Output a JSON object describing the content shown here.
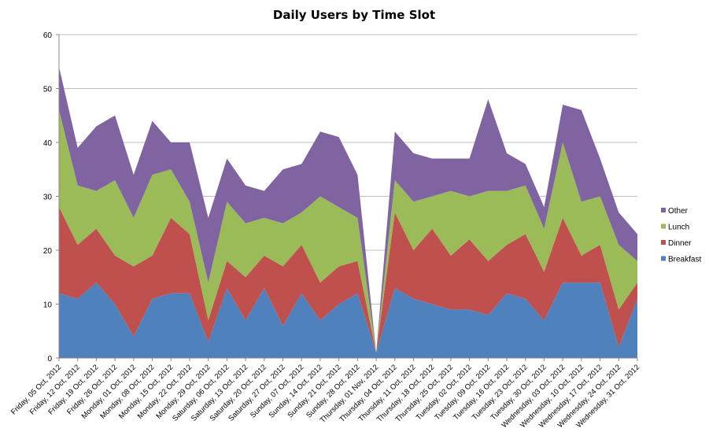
{
  "chart_data": {
    "type": "area",
    "stacked": true,
    "title": "Daily Users by Time Slot",
    "xlabel": "",
    "ylabel": "",
    "ylim": [
      0,
      60
    ],
    "yticks": [
      0,
      10,
      20,
      30,
      40,
      50,
      60
    ],
    "grid": true,
    "legend_position": "right",
    "categories": [
      "Friday, 05 Oct, 2012",
      "Friday, 12 Oct, 2012",
      "Friday, 19 Oct, 2012",
      "Friday, 26 Oct, 2012",
      "Monday, 01 Oct, 2012",
      "Monday, 08 Oct, 2012",
      "Monday, 15 Oct, 2012",
      "Monday, 22 Oct, 2012",
      "Monday, 29 Oct, 2012",
      "Saturday, 06 Oct, 2012",
      "Saturday, 13 Oct, 2012",
      "Saturday, 20 Oct, 2012",
      "Saturday, 27 Oct, 2012",
      "Sunday, 07 Oct, 2012",
      "Sunday, 14 Oct, 2012",
      "Sunday, 21 Oct, 2012",
      "Sunday, 28 Oct, 2012",
      "Thursday, 01 Nov, 2012",
      "Thursday, 04 Oct, 2012",
      "Thursday, 11 Oct, 2012",
      "Thursday, 18 Oct, 2012",
      "Thursday, 25 Oct, 2012",
      "Tuesday, 02 Oct, 2012",
      "Tuesday, 09 Oct, 2012",
      "Tuesday, 16 Oct, 2012",
      "Tuesday, 23 Oct, 2012",
      "Tuesday, 30 Oct, 2012",
      "Wednesday, 03 Oct, 2012",
      "Wednesday, 10 Oct, 2012",
      "Wednesday, 17 Oct, 2012",
      "Wednesday, 24 Oct, 2012",
      "Wednesday, 31 Oct, 2012"
    ],
    "series": [
      {
        "name": "Breakfast",
        "color": "#4f81bd",
        "values": [
          12,
          11,
          14,
          10,
          4,
          11,
          12,
          12,
          3,
          13,
          7,
          13,
          6,
          12,
          7,
          10,
          12,
          1,
          13,
          11,
          10,
          9,
          9,
          8,
          12,
          11,
          7,
          14,
          14,
          14,
          2,
          11
        ]
      },
      {
        "name": "Dinner",
        "color": "#c0504d",
        "values": [
          16,
          10,
          10,
          9,
          13,
          8,
          14,
          11,
          4,
          5,
          8,
          6,
          11,
          9,
          7,
          7,
          6,
          0,
          14,
          9,
          14,
          10,
          13,
          10,
          9,
          12,
          9,
          12,
          5,
          7,
          7,
          3
        ]
      },
      {
        "name": "Lunch",
        "color": "#9bbb59",
        "values": [
          18,
          11,
          7,
          14,
          9,
          15,
          9,
          6,
          7,
          11,
          10,
          7,
          8,
          6,
          16,
          11,
          8,
          0,
          6,
          9,
          6,
          12,
          8,
          13,
          10,
          9,
          8,
          14,
          10,
          9,
          12,
          4
        ]
      },
      {
        "name": "Other",
        "color": "#8064a2",
        "values": [
          8,
          7,
          12,
          12,
          8,
          10,
          5,
          11,
          12,
          8,
          7,
          5,
          10,
          9,
          12,
          13,
          8,
          0,
          9,
          9,
          7,
          6,
          7,
          17,
          7,
          4,
          4,
          7,
          17,
          7,
          6,
          5
        ]
      }
    ],
    "legend_order": [
      "Other",
      "Lunch",
      "Dinner",
      "Breakfast"
    ]
  }
}
